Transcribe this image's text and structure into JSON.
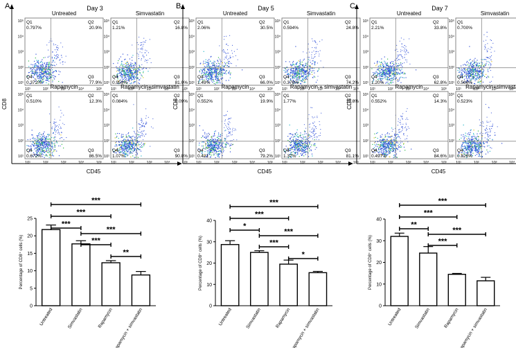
{
  "panels": [
    {
      "letter": "A",
      "day": "Day 3",
      "flow_xlabel": "CD45",
      "flow_ylabel": "CD8",
      "plots": [
        {
          "title": "Untreated",
          "q1": "0.797%",
          "q2": "20.9%",
          "q3": "77.9%",
          "q4": "0.372%"
        },
        {
          "title": "Simvastatin",
          "q1": "1.21%",
          "q2": "16.8%",
          "q3": "81.0%",
          "q4": "0.959%"
        },
        {
          "title": "Rapamycin",
          "q1": "0.510%",
          "q2": "12.3%",
          "q3": "86.5%",
          "q4": "0.672%"
        },
        {
          "title": "Rapamycin+simvastatin",
          "q1": "0.084%",
          "q2": "8.09%",
          "q3": "90.8%",
          "q4": "1.07%"
        }
      ]
    },
    {
      "letter": "B",
      "day": "Day 5",
      "flow_xlabel": "CD45",
      "flow_ylabel": "CD8",
      "plots": [
        {
          "title": "Untreated",
          "q1": "2.06%",
          "q2": "30.5%",
          "q3": "66.0%",
          "q4": "1.49%"
        },
        {
          "title": "Simvastatin",
          "q1": "0.594%",
          "q2": "24.8%",
          "q3": "74.2%",
          "q4": "0.378%"
        },
        {
          "title": "Rapamycin",
          "q1": "0.552%",
          "q2": "19.9%",
          "q3": "79.2%",
          "q4": "0.421"
        },
        {
          "title": "Rapamycin + simvastatin",
          "q1": "1.77%",
          "q2": "15.8%",
          "q3": "81.1%",
          "q4": "1.37%"
        }
      ]
    },
    {
      "letter": "C",
      "day": "Day 7",
      "flow_xlabel": "CD45",
      "flow_ylabel": "CD8",
      "plots": [
        {
          "title": "Untreated",
          "q1": "2.21%",
          "q2": "33.8%",
          "q3": "62.8%",
          "q4": "1.20%"
        },
        {
          "title": "Simvastatin",
          "q1": "0.700%",
          "q2": "15.9%",
          "q3": "82.8%",
          "q4": "0.566%"
        },
        {
          "title": "Rapamycin",
          "q1": "0.552%",
          "q2": "14.3%",
          "q3": "84.6%",
          "q4": "0.497%"
        },
        {
          "title": "Rapamycin+simvastatin",
          "q1": "0.523%",
          "q2": "8.89%",
          "q3": "89.8%",
          "q4": "0.826%"
        }
      ]
    }
  ],
  "quadrant_labels": [
    "Q1",
    "Q2",
    "Q3",
    "Q4"
  ],
  "flow_axis_ticks": [
    "10¹",
    "10²",
    "10³",
    "10⁴",
    "10⁵"
  ],
  "chart_data": [
    {
      "type": "bar",
      "panel": "A",
      "categories": [
        "Untreated",
        "Simvastatin",
        "Rapamycin",
        "Rapamycin + simvastatin"
      ],
      "values": [
        21.8,
        17.7,
        12.3,
        8.8
      ],
      "errors": [
        1.3,
        0.9,
        0.6,
        1.0
      ],
      "ylabel": "Percentage of CD8⁺ cells (%)",
      "ylim": [
        0,
        25
      ],
      "yticks": [
        0,
        5,
        10,
        15,
        20,
        25
      ],
      "significance": [
        {
          "from": 0,
          "to": 3,
          "label": "***"
        },
        {
          "from": 0,
          "to": 2,
          "label": "***"
        },
        {
          "from": 0,
          "to": 1,
          "label": "***"
        },
        {
          "from": 1,
          "to": 3,
          "label": "***"
        },
        {
          "from": 1,
          "to": 2,
          "label": "***"
        },
        {
          "from": 2,
          "to": 3,
          "label": "**"
        }
      ]
    },
    {
      "type": "bar",
      "panel": "B",
      "categories": [
        "Untreated",
        "Simvastatin",
        "Rapamycin",
        "Rapamycin + simvastatin"
      ],
      "values": [
        28.7,
        25.0,
        19.5,
        15.5
      ],
      "errors": [
        1.8,
        0.8,
        1.9,
        0.6
      ],
      "ylabel": "Percentage of CD8⁺ cells (%)",
      "ylim": [
        0,
        40
      ],
      "yticks": [
        0,
        10,
        20,
        30,
        40
      ],
      "significance": [
        {
          "from": 0,
          "to": 3,
          "label": "***"
        },
        {
          "from": 0,
          "to": 2,
          "label": "***"
        },
        {
          "from": 0,
          "to": 1,
          "label": "*"
        },
        {
          "from": 1,
          "to": 3,
          "label": "***"
        },
        {
          "from": 1,
          "to": 2,
          "label": "***"
        },
        {
          "from": 2,
          "to": 3,
          "label": "*"
        }
      ]
    },
    {
      "type": "bar",
      "panel": "C",
      "categories": [
        "Untreated",
        "Simvastatin",
        "Rapamycin",
        "Rapamycin + simvastatin"
      ],
      "values": [
        32.0,
        24.3,
        14.5,
        11.5
      ],
      "errors": [
        1.5,
        3.0,
        0.4,
        1.6
      ],
      "ylabel": "Percentage of CD8⁺ cells (%)",
      "ylim": [
        0,
        40
      ],
      "yticks": [
        0,
        10,
        20,
        30,
        40
      ],
      "significance": [
        {
          "from": 0,
          "to": 3,
          "label": "***"
        },
        {
          "from": 0,
          "to": 2,
          "label": "***"
        },
        {
          "from": 0,
          "to": 1,
          "label": "**"
        },
        {
          "from": 1,
          "to": 3,
          "label": "***"
        },
        {
          "from": 1,
          "to": 2,
          "label": "***"
        }
      ]
    }
  ]
}
